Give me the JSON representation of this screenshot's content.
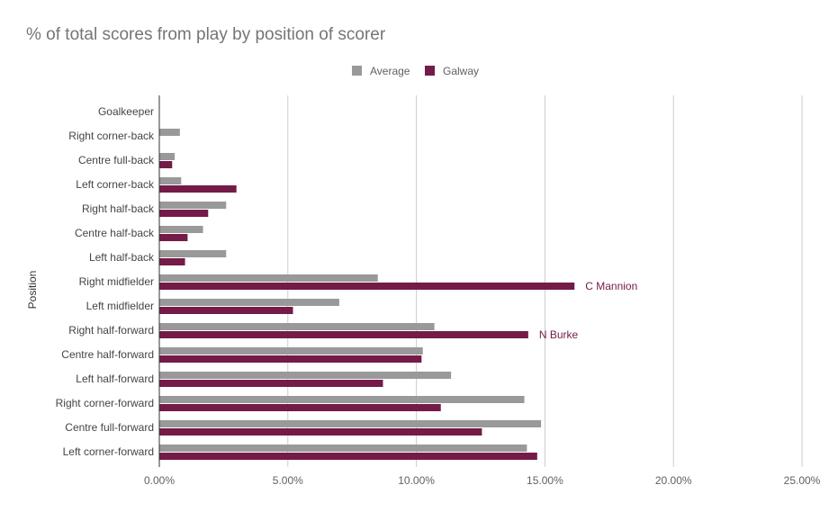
{
  "chart_data": {
    "type": "bar",
    "orientation": "horizontal",
    "title": "% of total scores from play by position of scorer",
    "ylabel": "Position",
    "xlabel": "",
    "xlim": [
      0,
      25
    ],
    "x_ticks": [
      "0.00%",
      "5.00%",
      "10.00%",
      "15.00%",
      "20.00%",
      "25.00%"
    ],
    "grid": true,
    "legend_position": "top",
    "categories": [
      "Goalkeeper",
      "Right corner-back",
      "Centre full-back",
      "Left corner-back",
      "Right half-back",
      "Centre half-back",
      "Left half-back",
      "Right midfielder",
      "Left midfielder",
      "Right half-forward",
      "Centre half-forward",
      "Left half-forward",
      "Right corner-forward",
      "Centre full-forward",
      "Left corner-forward"
    ],
    "series": [
      {
        "name": "Average",
        "color": "#999999",
        "values": [
          0.0,
          0.8,
          0.6,
          0.85,
          2.6,
          1.7,
          2.6,
          8.5,
          7.0,
          10.7,
          10.25,
          11.35,
          14.2,
          14.85,
          14.3
        ]
      },
      {
        "name": "Galway",
        "color": "#741b47",
        "values": [
          0.0,
          0.0,
          0.5,
          3.0,
          1.9,
          1.1,
          1.0,
          16.15,
          5.2,
          14.35,
          10.2,
          8.7,
          10.95,
          12.55,
          14.7
        ]
      }
    ],
    "annotations": [
      {
        "category": "Right midfielder",
        "series": "Galway",
        "text": "C Mannion"
      },
      {
        "category": "Right half-forward",
        "series": "Galway",
        "text": "N Burke"
      }
    ]
  }
}
